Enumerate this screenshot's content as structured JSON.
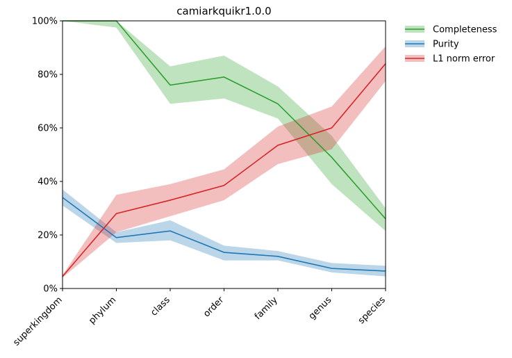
{
  "chart_data": {
    "type": "line",
    "title": "camiarkquikr1.0.0",
    "categories": [
      "superkingdom",
      "phylum",
      "class",
      "order",
      "family",
      "genus",
      "species"
    ],
    "y_ticks": [
      "0%",
      "20%",
      "40%",
      "60%",
      "80%",
      "100%"
    ],
    "ylim": [
      0,
      100
    ],
    "y_unit": "%",
    "grid": false,
    "legend_position": "outside-top-right",
    "series": [
      {
        "name": "Completeness",
        "color": "#2ca02c",
        "values": [
          100,
          100,
          76,
          79,
          69,
          49,
          26
        ],
        "lower": [
          100,
          97.5,
          69,
          71,
          63.5,
          39,
          21.5
        ],
        "upper": [
          100,
          100,
          83,
          87,
          75.5,
          57,
          30
        ]
      },
      {
        "name": "Purity",
        "color": "#1f77b4",
        "values": [
          34,
          19,
          21.5,
          13.5,
          12,
          7.5,
          6.5
        ],
        "lower": [
          31,
          17,
          18,
          10.5,
          10.5,
          6,
          4.5
        ],
        "upper": [
          37,
          21,
          25.5,
          16,
          14,
          9.5,
          8.5
        ]
      },
      {
        "name": "L1 norm error",
        "color": "#d62728",
        "values": [
          4.5,
          28,
          33,
          38.5,
          53.5,
          60,
          84
        ],
        "lower": [
          4,
          21,
          27,
          33,
          46.5,
          52,
          77.5
        ],
        "upper": [
          5,
          35,
          39,
          44.5,
          60.5,
          68,
          90.5
        ]
      }
    ]
  }
}
